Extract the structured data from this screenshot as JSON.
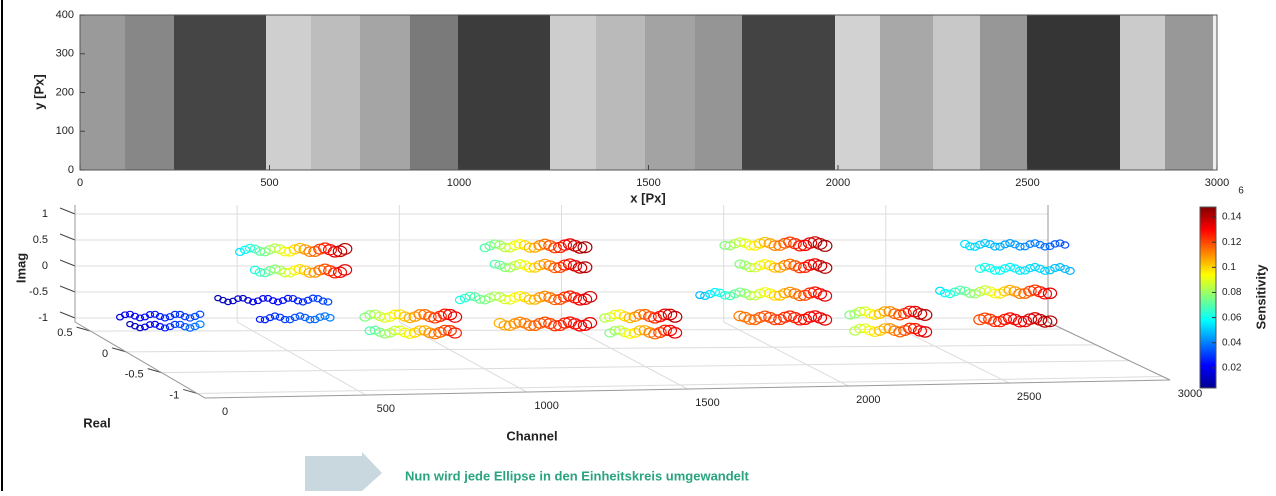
{
  "chart_data": [
    {
      "type": "image",
      "xlabel": "x [Px]",
      "ylabel": "y [Px]",
      "xlim": [
        0,
        3000
      ],
      "ylim": [
        0,
        400
      ],
      "xticks": [
        0,
        500,
        1000,
        1500,
        2000,
        2500,
        3000
      ],
      "yticks": [
        0,
        100,
        200,
        300,
        400
      ]
    },
    {
      "type": "scatter3d",
      "xlabel": "Channel",
      "ylabel": "Real",
      "zlabel": "Imag",
      "annotation": "6",
      "xlim": [
        0,
        3000
      ],
      "xticks": [
        0,
        500,
        1000,
        1500,
        2000,
        2500,
        3000
      ],
      "yticks": [
        0.5,
        0,
        -0.5,
        -1
      ],
      "zticks": [
        1,
        0.5,
        0,
        -0.5,
        -1
      ],
      "grid": true,
      "colorbar": {
        "label": "Sensitivity",
        "clim": [
          0.004,
          0.148
        ],
        "ticks": [
          0.02,
          0.04,
          0.06,
          0.08,
          0.1,
          0.12,
          0.14
        ]
      }
    }
  ],
  "caption": "Nun wird jede Ellipse in den Einheitskreis umgewandelt"
}
